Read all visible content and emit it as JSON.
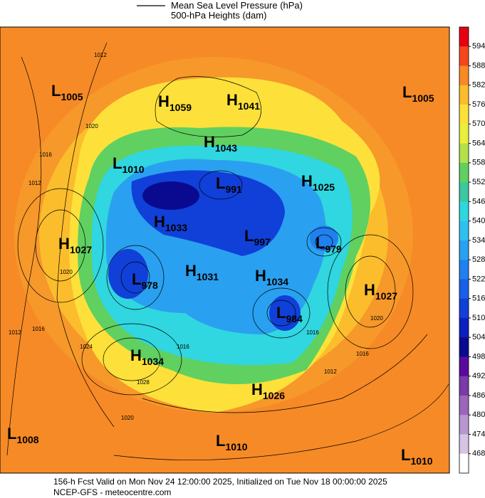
{
  "legend": {
    "line_label_1": "Mean Sea Level Pressure (hPa)",
    "line_label_2": "500-hPa Heights (dam)"
  },
  "centers": [
    {
      "letter": "L",
      "value": "1005"
    },
    {
      "letter": "H",
      "value": "1059"
    },
    {
      "letter": "H",
      "value": "1041"
    },
    {
      "letter": "L",
      "value": "1005"
    },
    {
      "letter": "H",
      "value": "1043"
    },
    {
      "letter": "L",
      "value": "1010"
    },
    {
      "letter": "L",
      "value": "991"
    },
    {
      "letter": "H",
      "value": "1025"
    },
    {
      "letter": "H",
      "value": "1027"
    },
    {
      "letter": "H",
      "value": "1033"
    },
    {
      "letter": "L",
      "value": "997"
    },
    {
      "letter": "L",
      "value": "979"
    },
    {
      "letter": "L",
      "value": "978"
    },
    {
      "letter": "H",
      "value": "1031"
    },
    {
      "letter": "H",
      "value": "1034"
    },
    {
      "letter": "H",
      "value": "1027"
    },
    {
      "letter": "L",
      "value": "984"
    },
    {
      "letter": "H",
      "value": "1034"
    },
    {
      "letter": "H",
      "value": "1026"
    },
    {
      "letter": "L",
      "value": "1008"
    },
    {
      "letter": "L",
      "value": "1010"
    },
    {
      "letter": "L",
      "value": "1010"
    }
  ],
  "isobar_labels": [
    "1012",
    "1016",
    "1012",
    "1020",
    "1016",
    "1024",
    "1020",
    "1012",
    "1016",
    "1020",
    "1028",
    "1016",
    "1016",
    "1012",
    "1020"
  ],
  "colorbar": {
    "labels": [
      594,
      588,
      582,
      576,
      570,
      564,
      558,
      552,
      546,
      540,
      534,
      528,
      522,
      516,
      510,
      504,
      498,
      492,
      486,
      480,
      474,
      468
    ],
    "colors": [
      "#e60012",
      "#f5461d",
      "#f68a26",
      "#fbbd2c",
      "#fde13a",
      "#e8ef3c",
      "#b5e04a",
      "#60d060",
      "#3cc8a0",
      "#30d6e0",
      "#30c0f0",
      "#2aa0f0",
      "#2080f0",
      "#1860e8",
      "#1040d8",
      "#0a20c0",
      "#0a0a90",
      "#5a0a9a",
      "#7a3aa8",
      "#9a66bc",
      "#b896d0",
      "#d6c4e4",
      "#ffffff"
    ]
  },
  "footer": {
    "line_1": "156-h Fcst Valid on Mon Nov 24 12:00:00 2025, Initialized on Tue Nov 18 00:00:00 2025",
    "line_2": "NCEP-GFS - meteocentre.com"
  }
}
